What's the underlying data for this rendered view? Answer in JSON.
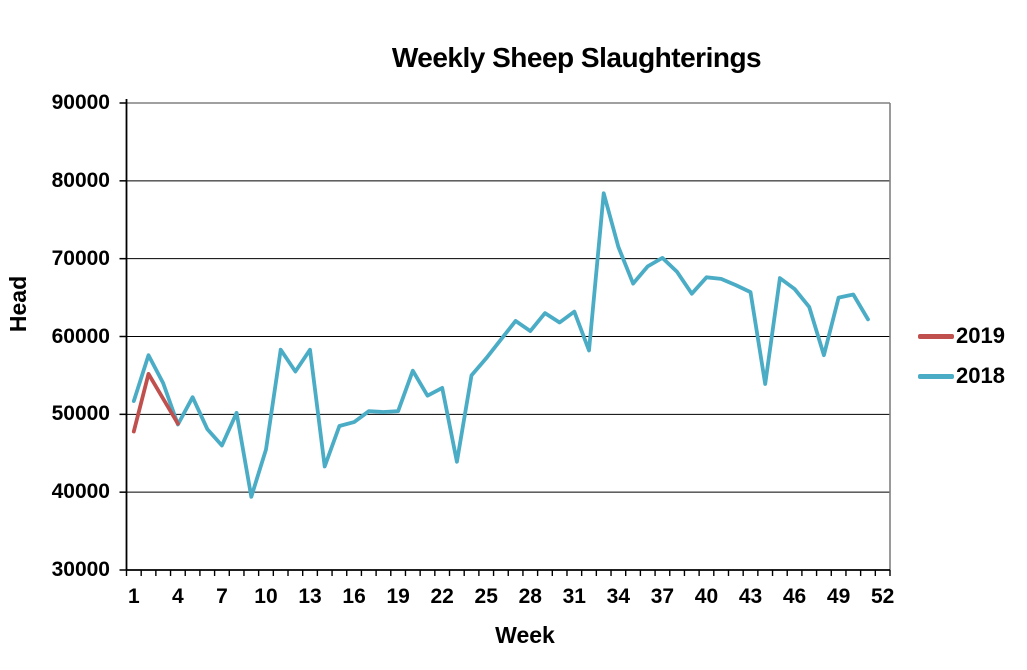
{
  "title": "Weekly Sheep Slaughterings",
  "chart_data": {
    "type": "line",
    "title": "Weekly Sheep Slaughterings",
    "xlabel": "Week",
    "ylabel": "Head",
    "ylim": [
      30000,
      90000
    ],
    "ytick_step": 10000,
    "yticks": [
      30000,
      40000,
      50000,
      60000,
      70000,
      80000,
      90000
    ],
    "xlim": [
      1,
      52
    ],
    "xtick_labels": [
      1,
      4,
      7,
      10,
      13,
      16,
      19,
      22,
      25,
      28,
      31,
      34,
      37,
      40,
      43,
      46,
      49,
      52
    ],
    "grid": "horizontal",
    "legend_position": "right",
    "colors": {
      "axis": "#000000",
      "gridline": "#000000",
      "plot_border": "#808080",
      "background": "#FFFFFF"
    },
    "series": [
      {
        "name": "2019",
        "color": "#C0504D",
        "x": [
          1,
          2,
          3,
          4
        ],
        "values": [
          47800,
          55200,
          52000,
          48800
        ]
      },
      {
        "name": "2018",
        "color": "#4BACC6",
        "x": [
          1,
          2,
          3,
          4,
          5,
          6,
          7,
          8,
          9,
          10,
          11,
          12,
          13,
          14,
          15,
          16,
          17,
          18,
          19,
          20,
          21,
          22,
          23,
          24,
          25,
          26,
          27,
          28,
          29,
          30,
          31,
          32,
          33,
          34,
          35,
          36,
          37,
          38,
          39,
          40,
          41,
          42,
          43,
          44,
          45,
          46,
          47,
          48,
          49,
          50,
          51
        ],
        "values": [
          51700,
          57600,
          54000,
          48700,
          52200,
          48100,
          46000,
          50200,
          39400,
          45500,
          58300,
          55500,
          58300,
          43300,
          48500,
          49000,
          50400,
          50300,
          50400,
          55600,
          52400,
          53400,
          43900,
          55000,
          57200,
          59600,
          62000,
          60700,
          63000,
          61800,
          63200,
          58200,
          78400,
          71500,
          66800,
          69000,
          70100,
          68300,
          65500,
          67600,
          67400,
          66600,
          65700,
          53900,
          67500,
          66100,
          63800,
          57600,
          65000,
          65400,
          62200
        ]
      }
    ]
  }
}
